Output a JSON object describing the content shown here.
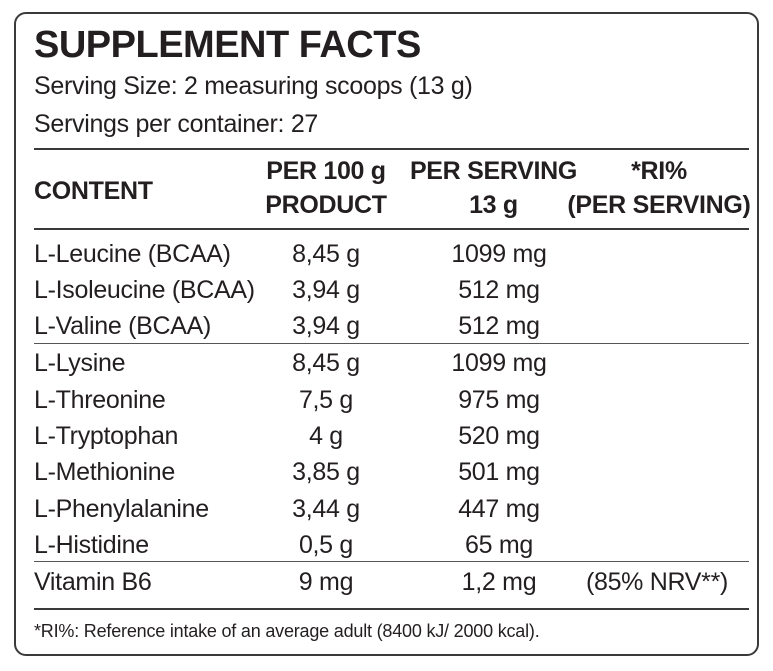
{
  "title": "SUPPLEMENT FACTS",
  "serving_size": "Serving Size: 2 measuring scoops (13 g)",
  "servings_per_container": "Servings per container: 27",
  "headers": {
    "content": "CONTENT",
    "per100_line1": "PER 100 g",
    "per100_line2": "PRODUCT",
    "serving_line1": "PER SERVING",
    "serving_line2": "13 g",
    "ri_line1": "*RI%",
    "ri_line2": "(PER SERVING)"
  },
  "rows": [
    {
      "name": "L-Leucine (BCAA)",
      "per100": "8,45 g",
      "serving": "1099 mg",
      "ri": ""
    },
    {
      "name": "L-Isoleucine (BCAA)",
      "per100": "3,94 g",
      "serving": "512 mg",
      "ri": ""
    },
    {
      "name": "L-Valine (BCAA)",
      "per100": "3,94 g",
      "serving": "512 mg",
      "ri": ""
    },
    {
      "name": "L-Lysine",
      "per100": "8,45 g",
      "serving": "1099 mg",
      "ri": ""
    },
    {
      "name": "L-Threonine",
      "per100": "7,5 g",
      "serving": "975 mg",
      "ri": ""
    },
    {
      "name": "L-Tryptophan",
      "per100": "4 g",
      "serving": "520 mg",
      "ri": ""
    },
    {
      "name": "L-Methionine",
      "per100": "3,85 g",
      "serving": "501 mg",
      "ri": ""
    },
    {
      "name": "L-Phenylalanine",
      "per100": "3,44 g",
      "serving": "447 mg",
      "ri": ""
    },
    {
      "name": "L-Histidine",
      "per100": "0,5 g",
      "serving": "65 mg",
      "ri": ""
    },
    {
      "name": "Vitamin B6",
      "per100": "9 mg",
      "serving": "1,2 mg",
      "ri": "(85% NRV**)"
    }
  ],
  "footnote": "*RI%: Reference intake of an average adult (8400 kJ/ 2000 kcal)."
}
